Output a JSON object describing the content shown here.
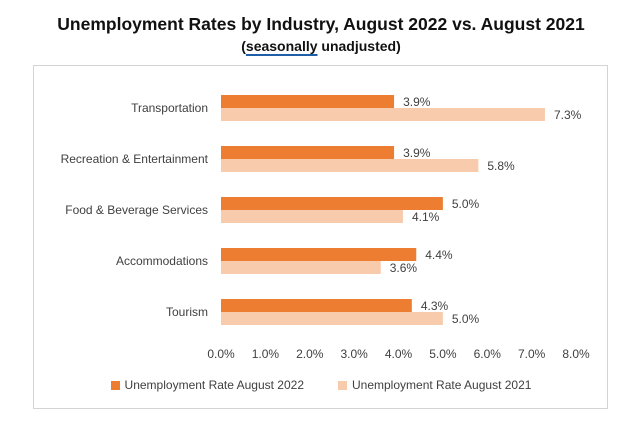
{
  "title_line": "Unemployment Rates by Industry, August 2022 vs. August 2021",
  "subtitle": {
    "open": "(",
    "underlined": "seasonally",
    "rest": " unadjusted)"
  },
  "colors": {
    "series_2022": "#ED7D31",
    "series_2021": "#F8CBAD",
    "gridline": "#d9d9d9",
    "text": "#404040"
  },
  "chart_data": {
    "type": "bar",
    "orientation": "horizontal",
    "title": "Unemployment Rates by Industry, August 2022 vs. August 2021",
    "subtitle": "(seasonally unadjusted)",
    "categories": [
      "Transportation",
      "Recreation & Entertainment",
      "Food & Beverage Services",
      "Accommodations",
      "Tourism"
    ],
    "series": [
      {
        "name": "Unemployment Rate August 2022",
        "values": [
          3.9,
          3.9,
          5.0,
          4.4,
          4.3
        ],
        "labels": [
          "3.9%",
          "3.9%",
          "5.0%",
          "4.4%",
          "4.3%"
        ]
      },
      {
        "name": "Unemployment Rate August 2021",
        "values": [
          7.3,
          5.8,
          4.1,
          3.6,
          5.0
        ],
        "labels": [
          "7.3%",
          "5.8%",
          "4.1%",
          "3.6%",
          "5.0%"
        ]
      }
    ],
    "x_ticks": [
      "0.0%",
      "1.0%",
      "2.0%",
      "3.0%",
      "4.0%",
      "5.0%",
      "6.0%",
      "7.0%",
      "8.0%"
    ],
    "xlim": [
      0,
      8
    ],
    "grid": false,
    "legend_position": "bottom"
  }
}
